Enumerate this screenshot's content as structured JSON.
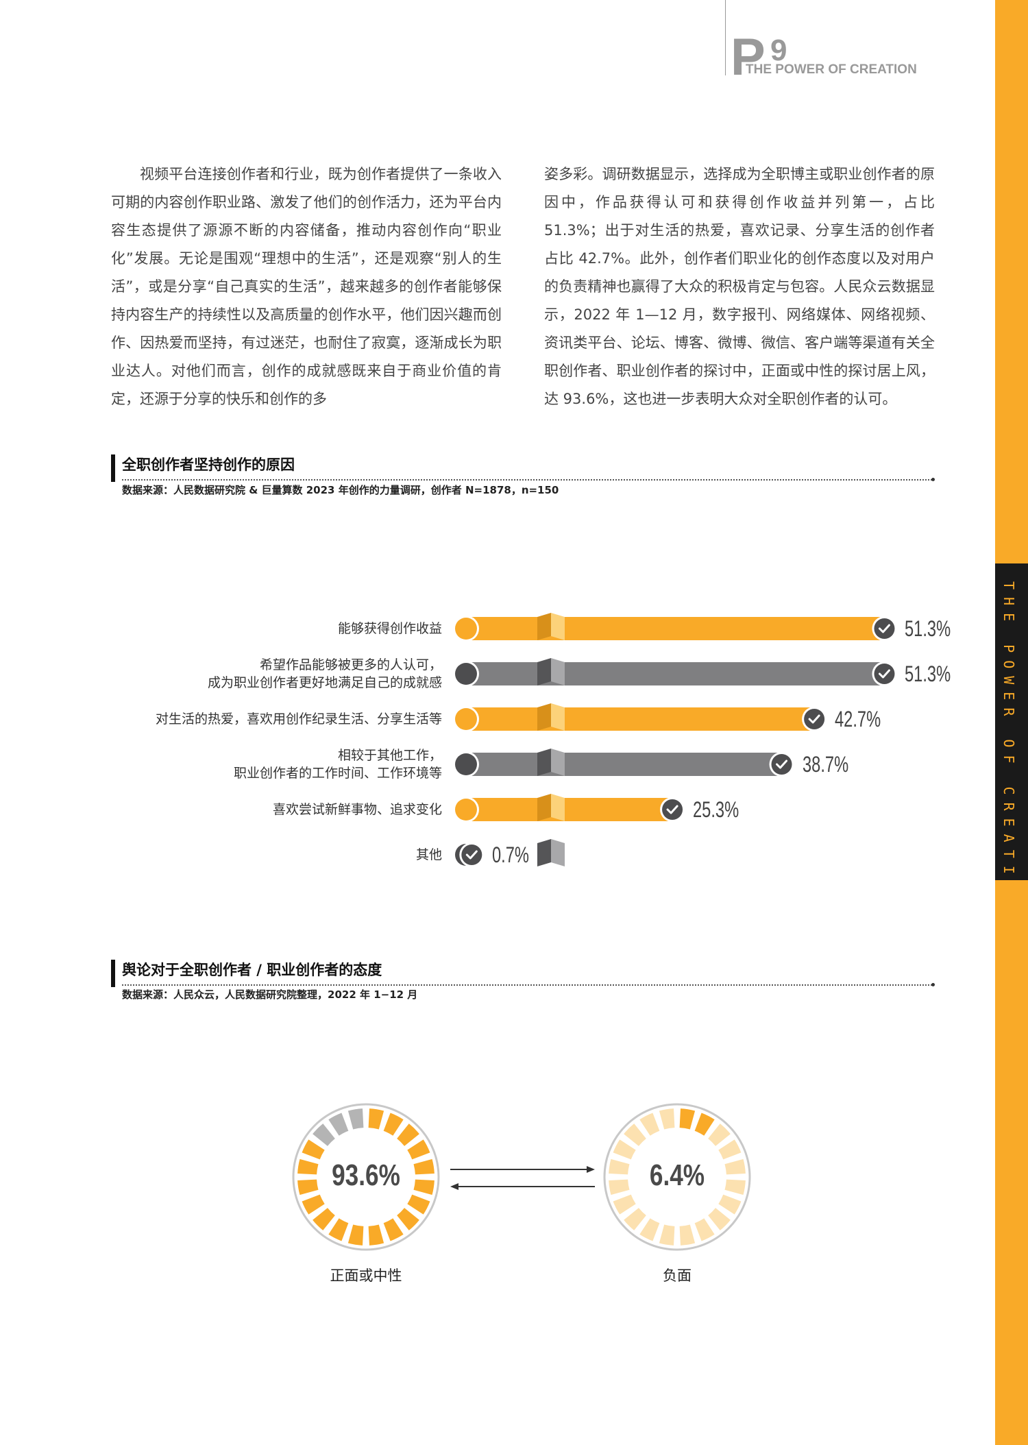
{
  "header": {
    "page_letter": "P",
    "page_number": "9",
    "tagline": "THE POWER OF CREATION"
  },
  "side_stripe": {
    "text": "THE POWER OF CREATION"
  },
  "body": {
    "left_paragraph": "视频平台连接创作者和行业，既为创作者提供了一条收入可期的内容创作职业路、激发了他们的创作活力，还为平台内容生态提供了源源不断的内容储备，推动内容创作向“职业化”发展。无论是围观“理想中的生活”，还是观察“别人的生活”，或是分享“自己真实的生活”，越来越多的创作者能够保持内容生产的持续性以及高质量的创作水平，他们因兴趣而创作、因热爱而坚持，有过迷茫，也耐住了寂寞，逐渐成长为职业达人。对他们而言，创作的成就感既来自于商业价值的肯定，还源于分享的快乐和创作的多",
    "right_paragraph": "姿多彩。调研数据显示，选择成为全职博主或职业创作者的原因中，作品获得认可和获得创作收益并列第一，占比 51.3%；出于对生活的热爱，喜欢记录、分享生活的创作者占比 42.7%。此外，创作者们职业化的创作态度以及对用户的负责精神也赢得了大众的积极肯定与包容。人民众云数据显示，2022 年 1—12 月，数字报刊、网络媒体、网络视频、资讯类平台、论坛、博客、微博、微信、客户端等渠道有关全职创作者、职业创作者的探讨中，正面或中性的探讨居上风，达 93.6%，这也进一步表明大众对全职创作者的认可。"
  },
  "section1": {
    "title": "全职创作者坚持创作的原因",
    "source": "数据来源：人民数据研究院 & 巨量算数 2023 年创作的力量调研，创作者 N=1878，n=150"
  },
  "section2": {
    "title": "舆论对于全职创作者 / 职业创作者的态度",
    "source": "数据来源：人民众云，人民数据研究院整理，2022 年 1−12 月"
  },
  "colors": {
    "orange": "#f9aa28",
    "orange_dark": "#d8901a",
    "orange_light": "#fcd27a",
    "gray": "#7f7f81",
    "gray_dark": "#555557",
    "gray_light": "#a8a8aa",
    "donut_gray": "#b4b4b4",
    "donut_light": "#fce1b0"
  },
  "chart_data": [
    {
      "type": "bar",
      "orientation": "horizontal",
      "categories": [
        "能够获得创作收益",
        "希望作品能够被更多的人认可，\n成为职业创作者更好地满足自己的成就感",
        "对生活的热爱，喜欢用创作纪录生活、分享生活等",
        "相较于其他工作，\n职业创作者的工作时间、工作环境等",
        "喜欢尝试新鲜事物、追求变化",
        "其他"
      ],
      "values": [
        51.3,
        51.3,
        42.7,
        38.7,
        25.3,
        0.7
      ],
      "value_labels": [
        "51.3%",
        "51.3%",
        "42.7%",
        "38.7%",
        "25.3%",
        "0.7%"
      ],
      "bar_colors": [
        "orange",
        "gray",
        "orange",
        "gray",
        "orange",
        "gray"
      ],
      "unit": "%"
    },
    {
      "type": "pie",
      "style": "donut",
      "slices": [
        {
          "label": "正面或中性",
          "value": 93.6,
          "value_label": "93.6%"
        },
        {
          "label": "负面",
          "value": 6.4,
          "value_label": "6.4%"
        }
      ]
    }
  ]
}
